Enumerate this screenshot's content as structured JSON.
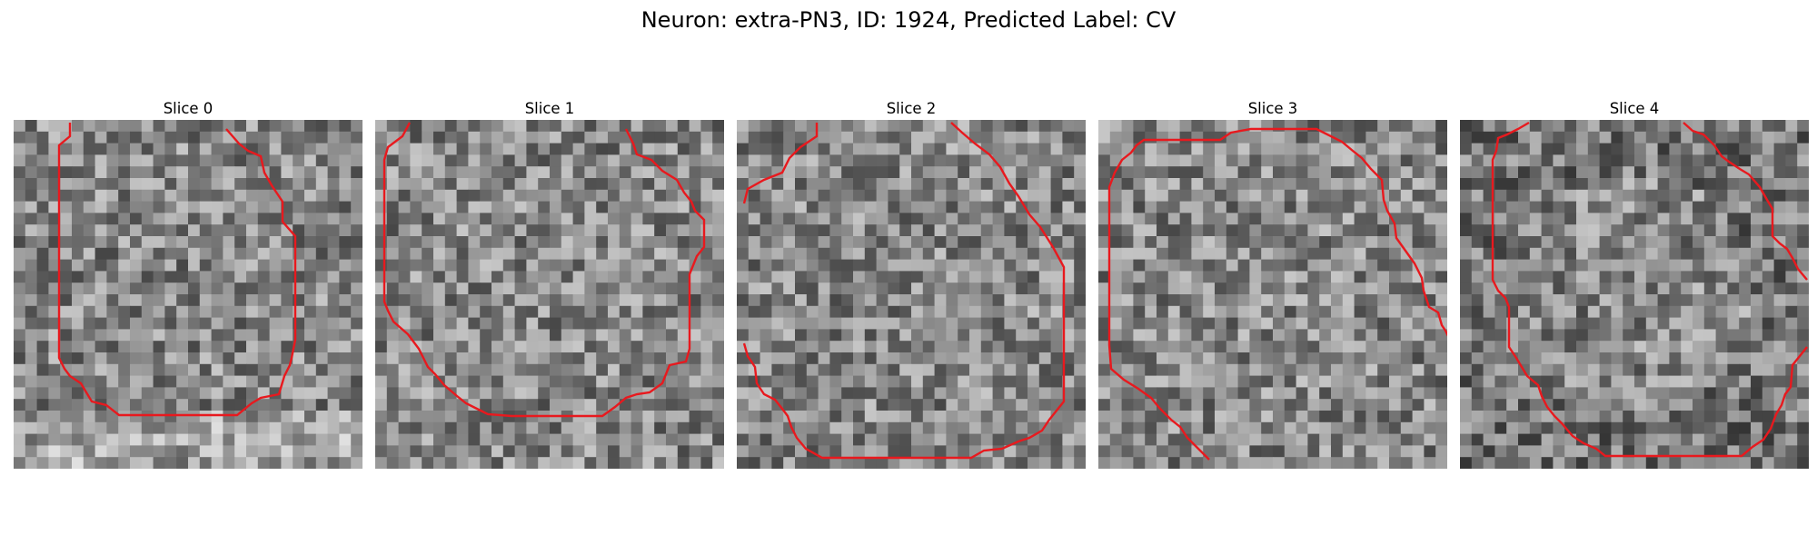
{
  "figure": {
    "title": "Neuron: extra-PN3, ID: 1924, Predicted Label: CV"
  },
  "panels": [
    {
      "title": "Slice 0",
      "contour_color": "#e8191e",
      "image": "grayscale-noise-tile",
      "grid": 30
    },
    {
      "title": "Slice 1",
      "contour_color": "#e8191e",
      "image": "grayscale-noise-tile",
      "grid": 30
    },
    {
      "title": "Slice 2",
      "contour_color": "#e8191e",
      "image": "grayscale-noise-tile",
      "grid": 30
    },
    {
      "title": "Slice 3",
      "contour_color": "#e8191e",
      "image": "grayscale-noise-tile",
      "grid": 30
    },
    {
      "title": "Slice 4",
      "contour_color": "#e8191e",
      "image": "grayscale-noise-tile",
      "grid": 30
    }
  ]
}
